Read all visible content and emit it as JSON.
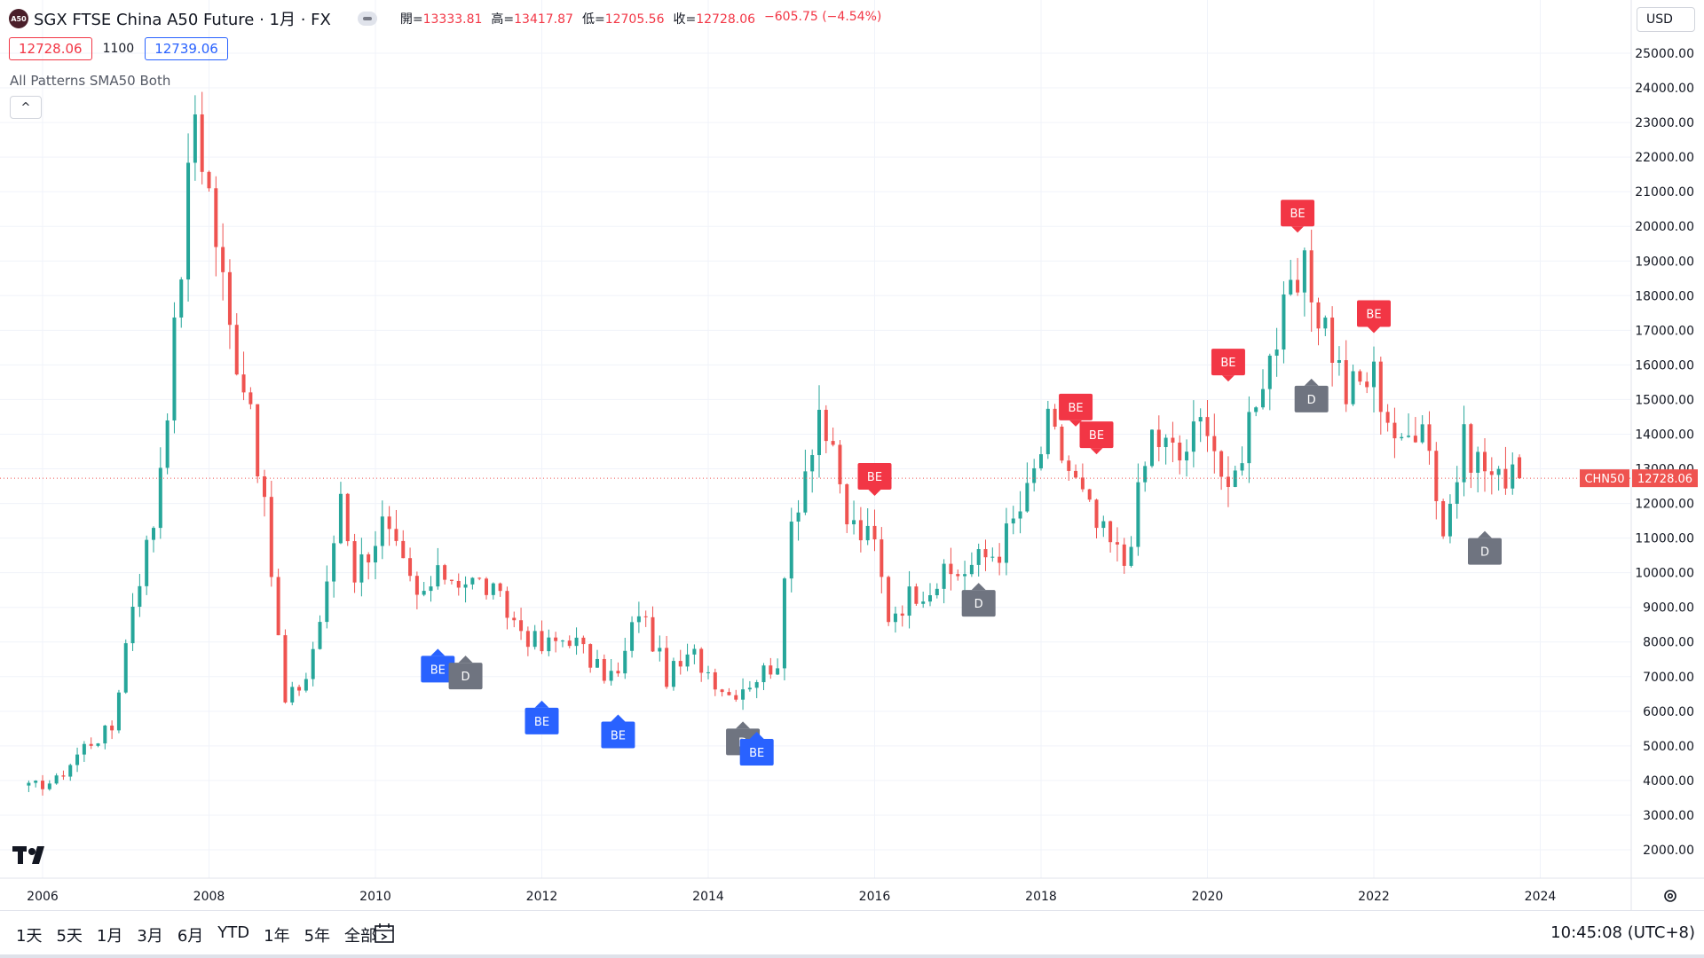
{
  "header": {
    "logo_text": "A50",
    "symbol_title": "SGX FTSE China A50 Future · 1月 · FX",
    "ohlc": [
      {
        "key": "開=",
        "value": "13333.81"
      },
      {
        "key": "高=",
        "value": "13417.87"
      },
      {
        "key": "低=",
        "value": "12705.56"
      },
      {
        "key": "收=",
        "value": "12728.06"
      },
      {
        "key": "",
        "value": "−605.75 (−4.54%)"
      }
    ],
    "bid": "12728.06",
    "spread": "1100",
    "ask": "12739.06",
    "indicator": "All Patterns SMA50 Both",
    "collapse_icon": "^",
    "currency": "USD"
  },
  "price_tag": {
    "symbol": "CHN50",
    "value": "12728.06"
  },
  "bottom_bar": {
    "ranges": [
      "1天",
      "5天",
      "1月",
      "3月",
      "6月",
      "YTD",
      "1年",
      "5年",
      "全部"
    ],
    "clock": "10:45:08 (UTC+8)"
  },
  "colors": {
    "up": "#26a69a",
    "down": "#ef5350",
    "bearish_label": "#f23645",
    "bullish_label": "#2962ff",
    "doji_label": "#6f7480",
    "grid": "#f0f3fa"
  },
  "chart_data": {
    "type": "candlestick",
    "title": "SGX FTSE China A50 Future",
    "interval": "1月",
    "y_ticks": [
      "2000.00",
      "3000.00",
      "4000.00",
      "5000.00",
      "6000.00",
      "7000.00",
      "8000.00",
      "9000.00",
      "10000.00",
      "11000.00",
      "12000.00",
      "13000.00",
      "14000.00",
      "15000.00",
      "16000.00",
      "17000.00",
      "18000.00",
      "19000.00",
      "20000.00",
      "21000.00",
      "22000.00",
      "23000.00",
      "24000.00",
      "25000.00"
    ],
    "x_ticks": [
      "2006",
      "2008",
      "2010",
      "2012",
      "2014",
      "2016",
      "2018",
      "2020",
      "2022",
      "2024"
    ],
    "ylim": [
      1500,
      25500
    ],
    "anchors": [
      [
        "2005-10",
        3800
      ],
      [
        "2006-02",
        4000
      ],
      [
        "2006-06",
        5000
      ],
      [
        "2006-10",
        5500
      ],
      [
        "2007-01",
        9200
      ],
      [
        "2007-04",
        11500
      ],
      [
        "2007-07",
        16800
      ],
      [
        "2007-10",
        23400
      ],
      [
        "2007-12",
        21000
      ],
      [
        "2008-03",
        17000
      ],
      [
        "2008-06",
        15000
      ],
      [
        "2008-09",
        10000
      ],
      [
        "2008-11",
        6200
      ],
      [
        "2009-02",
        7000
      ],
      [
        "2009-05",
        9500
      ],
      [
        "2009-07",
        12400
      ],
      [
        "2009-09",
        10000
      ],
      [
        "2010-01",
        11400
      ],
      [
        "2010-06",
        9200
      ],
      [
        "2010-10",
        10000
      ],
      [
        "2011-04",
        9600
      ],
      [
        "2011-08",
        8600
      ],
      [
        "2011-12",
        7800
      ],
      [
        "2012-04",
        8200
      ],
      [
        "2012-08",
        7200
      ],
      [
        "2012-11",
        7000
      ],
      [
        "2013-02",
        9000
      ],
      [
        "2013-06",
        7000
      ],
      [
        "2013-10",
        7600
      ],
      [
        "2014-03",
        6500
      ],
      [
        "2014-07",
        7000
      ],
      [
        "2014-10",
        7500
      ],
      [
        "2014-12",
        11400
      ],
      [
        "2015-04",
        14800
      ],
      [
        "2015-08",
        11500
      ],
      [
        "2015-12",
        10800
      ],
      [
        "2016-02",
        8800
      ],
      [
        "2016-06",
        9500
      ],
      [
        "2016-12",
        10000
      ],
      [
        "2017-06",
        10700
      ],
      [
        "2017-10",
        12200
      ],
      [
        "2018-01",
        14200
      ],
      [
        "2018-04",
        13000
      ],
      [
        "2018-08",
        11300
      ],
      [
        "2018-12",
        10300
      ],
      [
        "2019-04",
        14000
      ],
      [
        "2019-08",
        13300
      ],
      [
        "2019-12",
        14600
      ],
      [
        "2020-03",
        12000
      ],
      [
        "2020-07",
        15300
      ],
      [
        "2020-12",
        17800
      ],
      [
        "2021-02",
        18500
      ],
      [
        "2021-05",
        17200
      ],
      [
        "2021-08",
        15200
      ],
      [
        "2021-12",
        15700
      ],
      [
        "2022-04",
        13500
      ],
      [
        "2022-07",
        14800
      ],
      [
        "2022-10",
        11200
      ],
      [
        "2023-01",
        13700
      ],
      [
        "2023-06",
        12600
      ],
      [
        "2023-08",
        13300
      ],
      [
        "2023-09",
        12700
      ]
    ],
    "last": {
      "open": 13333.81,
      "high": 13417.87,
      "low": 12705.56,
      "close": 12728.06
    },
    "labels": [
      {
        "text": "BE",
        "kind": "bull",
        "date": "2010-09",
        "price": 7600
      },
      {
        "text": "D",
        "kind": "doji",
        "date": "2011-01",
        "price": 7400
      },
      {
        "text": "BE",
        "kind": "bull",
        "date": "2012-00",
        "price": 6100
      },
      {
        "text": "BE",
        "kind": "bull",
        "date": "2012-11",
        "price": 5700
      },
      {
        "text": "D",
        "kind": "doji",
        "date": "2014-05",
        "price": 5500
      },
      {
        "text": "BE",
        "kind": "bull",
        "date": "2014-07",
        "price": 5200
      },
      {
        "text": "BE",
        "kind": "bear",
        "date": "2016-00",
        "price": 12400
      },
      {
        "text": "D",
        "kind": "doji",
        "date": "2017-03",
        "price": 9500
      },
      {
        "text": "BE",
        "kind": "bear",
        "date": "2018-05",
        "price": 14400
      },
      {
        "text": "BE",
        "kind": "bear",
        "date": "2018-08",
        "price": 13600
      },
      {
        "text": "BE",
        "kind": "bear",
        "date": "2020-03",
        "price": 15700
      },
      {
        "text": "BE",
        "kind": "bear",
        "date": "2021-01",
        "price": 20000
      },
      {
        "text": "D",
        "kind": "doji",
        "date": "2021-03",
        "price": 15400
      },
      {
        "text": "BE",
        "kind": "bear",
        "date": "2022-00",
        "price": 17100
      },
      {
        "text": "D",
        "kind": "doji",
        "date": "2023-04",
        "price": 11000
      }
    ]
  }
}
